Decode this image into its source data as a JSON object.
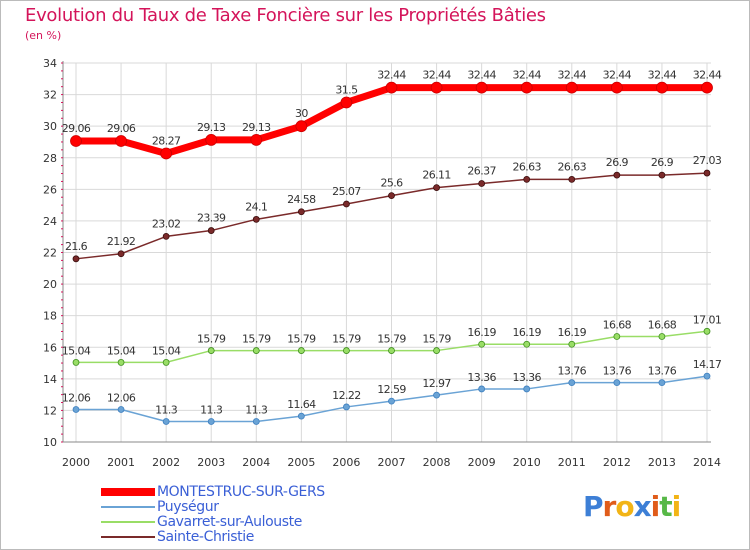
{
  "chart_data": {
    "type": "line",
    "title": "Evolution du Taux de Taxe Foncière sur les Propriétés Bâties",
    "subtitle": "(en %)",
    "x": [
      "2000",
      "2001",
      "2002",
      "2003",
      "2004",
      "2005",
      "2006",
      "2007",
      "2008",
      "2009",
      "2010",
      "2011",
      "2012",
      "2013",
      "2014"
    ],
    "ylim": [
      10,
      34
    ],
    "yticks": [
      "10",
      "12",
      "14",
      "16",
      "18",
      "20",
      "22",
      "24",
      "26",
      "28",
      "30",
      "32",
      "34"
    ],
    "series": [
      {
        "name": "MONTESTRUC-SUR-GERS",
        "color": "#ff0000",
        "values": [
          29.06,
          29.06,
          28.27,
          29.13,
          29.13,
          30,
          31.5,
          32.44,
          32.44,
          32.44,
          32.44,
          32.44,
          32.44,
          32.44,
          32.44
        ],
        "labels": [
          "29.06",
          "29.06",
          "28.27",
          "29.13",
          "29.13",
          "30",
          "31.5",
          "32.44",
          "32.44",
          "32.44",
          "32.44",
          "32.44",
          "32.44",
          "32.44",
          "32.44"
        ]
      },
      {
        "name": "Puységur",
        "color": "#6aa3d5",
        "values": [
          12.06,
          12.06,
          11.3,
          11.3,
          11.3,
          11.64,
          12.22,
          12.59,
          12.97,
          13.36,
          13.36,
          13.76,
          13.76,
          13.76,
          14.17
        ],
        "labels": [
          "12.06",
          "12.06",
          "11.3",
          "11.3",
          "11.3",
          "11.64",
          "12.22",
          "12.59",
          "12.97",
          "13.36",
          "13.36",
          "13.76",
          "13.76",
          "13.76",
          "14.17"
        ]
      },
      {
        "name": "Gavarret-sur-Aulouste",
        "color": "#99dd66",
        "values": [
          15.04,
          15.04,
          15.04,
          15.79,
          15.79,
          15.79,
          15.79,
          15.79,
          15.79,
          16.19,
          16.19,
          16.19,
          16.68,
          16.68,
          17.01
        ],
        "labels": [
          "15.04",
          "15.04",
          "15.04",
          "15.79",
          "15.79",
          "15.79",
          "15.79",
          "15.79",
          "15.79",
          "16.19",
          "16.19",
          "16.19",
          "16.68",
          "16.68",
          "17.01"
        ]
      },
      {
        "name": "Sainte-Christie",
        "color": "#7a2a2a",
        "values": [
          21.6,
          21.92,
          23.02,
          23.39,
          24.1,
          24.58,
          25.07,
          25.6,
          26.11,
          26.37,
          26.63,
          26.63,
          26.9,
          26.9,
          27.03
        ],
        "labels": [
          "21.6",
          "21.92",
          "23.02",
          "23.39",
          "24.1",
          "24.58",
          "25.07",
          "25.6",
          "26.11",
          "26.37",
          "26.63",
          "26.63",
          "26.9",
          "26.9",
          "27.03"
        ]
      }
    ],
    "legend_position": "bottom-left",
    "grid": true
  },
  "logo": {
    "letters": [
      "P",
      "r",
      "o",
      "x",
      "i",
      "t",
      "i"
    ],
    "colors": [
      "#3d7fd6",
      "#e05c1a",
      "#f2b416",
      "#3d7fd6",
      "#e05c1a",
      "#57b847",
      "#f2b416"
    ]
  }
}
